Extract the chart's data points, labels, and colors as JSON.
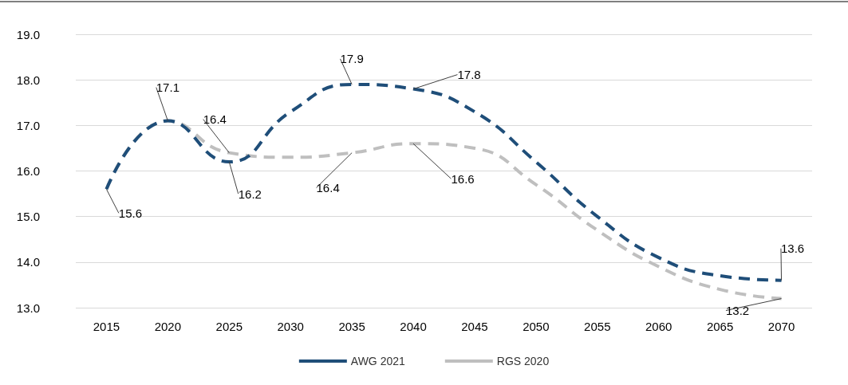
{
  "chart_data": {
    "type": "line",
    "categories": [
      "2015",
      "2020",
      "2025",
      "2030",
      "2035",
      "2040",
      "2045",
      "2050",
      "2055",
      "2060",
      "2065",
      "2070"
    ],
    "ylim": [
      13,
      19
    ],
    "yticks": [
      "13.0",
      "14.0",
      "15.0",
      "16.0",
      "17.0",
      "18.0",
      "19.0"
    ],
    "grid": "y",
    "legend": "bottom",
    "line_style": "dashed",
    "marker": "none",
    "series": [
      {
        "name": "AWG 2021",
        "color": "#1f4e79",
        "values": [
          15.6,
          17.1,
          16.2,
          17.3,
          17.9,
          17.8,
          17.3,
          16.2,
          15.0,
          14.1,
          13.7,
          13.6
        ],
        "value_labels": [
          null,
          "17.1",
          "16.2",
          null,
          "17.9",
          "17.8",
          null,
          null,
          null,
          null,
          null,
          "13.6"
        ]
      },
      {
        "name": "RGS 2020",
        "color": "#bfbfbf",
        "values": [
          15.6,
          17.1,
          16.4,
          16.3,
          16.4,
          16.6,
          16.5,
          15.7,
          14.7,
          13.9,
          13.4,
          13.2
        ],
        "value_labels": [
          "15.6",
          null,
          "16.4",
          null,
          "16.4",
          "16.6",
          null,
          null,
          null,
          null,
          null,
          "13.2"
        ]
      }
    ]
  }
}
